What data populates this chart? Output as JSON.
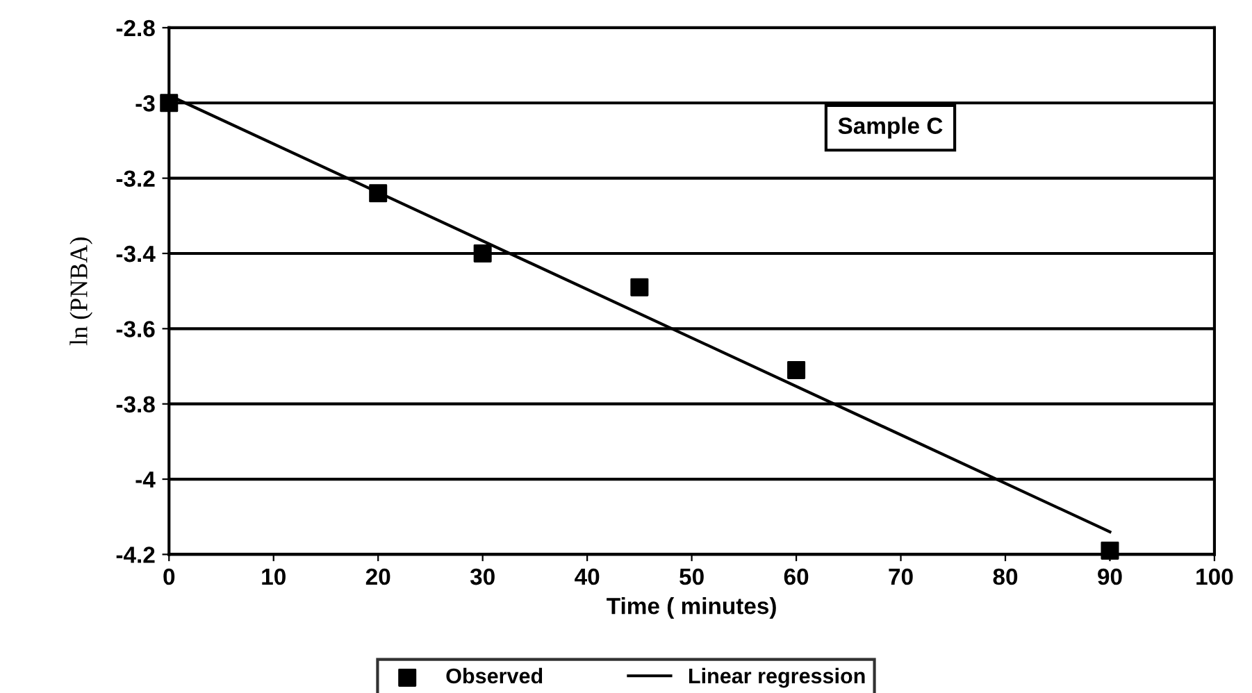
{
  "chart_data": {
    "type": "scatter",
    "xlabel": "Time ( minutes)",
    "ylabel": "ln (PNBA)",
    "xlim": [
      0,
      100
    ],
    "xticks": [
      0,
      10,
      20,
      30,
      40,
      50,
      60,
      70,
      80,
      90,
      100
    ],
    "ylim": [
      -4.2,
      -2.8
    ],
    "yticks": [
      -4.2,
      -4,
      -3.8,
      -3.6,
      -3.4,
      -3.2,
      -3,
      -2.8
    ],
    "grid": "y",
    "legend": "bottom",
    "annotations": [
      "Sample C"
    ],
    "series": [
      {
        "name": "Observed",
        "marker": "square",
        "color": "#000000",
        "x": [
          0,
          20,
          30,
          45,
          60,
          90
        ],
        "values": [
          -3.0,
          -3.24,
          -3.4,
          -3.49,
          -3.71,
          -4.19
        ]
      },
      {
        "name": "Linear regression",
        "type": "line",
        "line_style": "solid",
        "color": "#000000",
        "x": [
          0,
          90
        ],
        "values": [
          -2.98,
          -4.14
        ]
      }
    ]
  }
}
